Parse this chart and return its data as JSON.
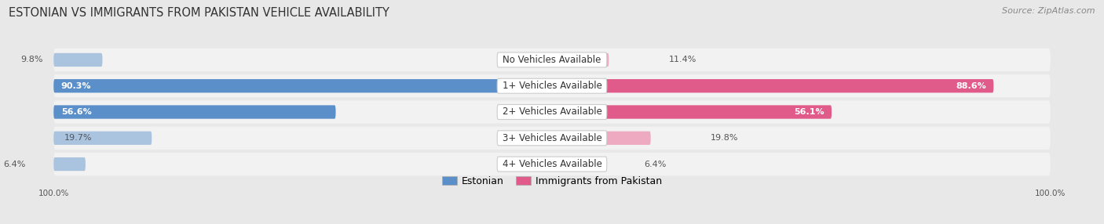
{
  "title": "ESTONIAN VS IMMIGRANTS FROM PAKISTAN VEHICLE AVAILABILITY",
  "source": "Source: ZipAtlas.com",
  "categories": [
    "No Vehicles Available",
    "1+ Vehicles Available",
    "2+ Vehicles Available",
    "3+ Vehicles Available",
    "4+ Vehicles Available"
  ],
  "estonian_values": [
    9.8,
    90.3,
    56.6,
    19.7,
    6.4
  ],
  "pakistan_values": [
    11.4,
    88.6,
    56.1,
    19.8,
    6.4
  ],
  "estonian_color_large": "#5b8fc9",
  "estonian_color_small": "#aac4e0",
  "pakistan_color_large": "#e05a8a",
  "pakistan_color_small": "#eeaac0",
  "estonian_label": "Estonian",
  "pakistan_label": "Immigrants from Pakistan",
  "bg_color": "#e8e8e8",
  "row_bg_color": "#f2f2f2",
  "title_fontsize": 10.5,
  "source_fontsize": 8,
  "label_fontsize": 8.5,
  "value_fontsize": 8,
  "legend_fontsize": 9,
  "large_threshold": 30
}
